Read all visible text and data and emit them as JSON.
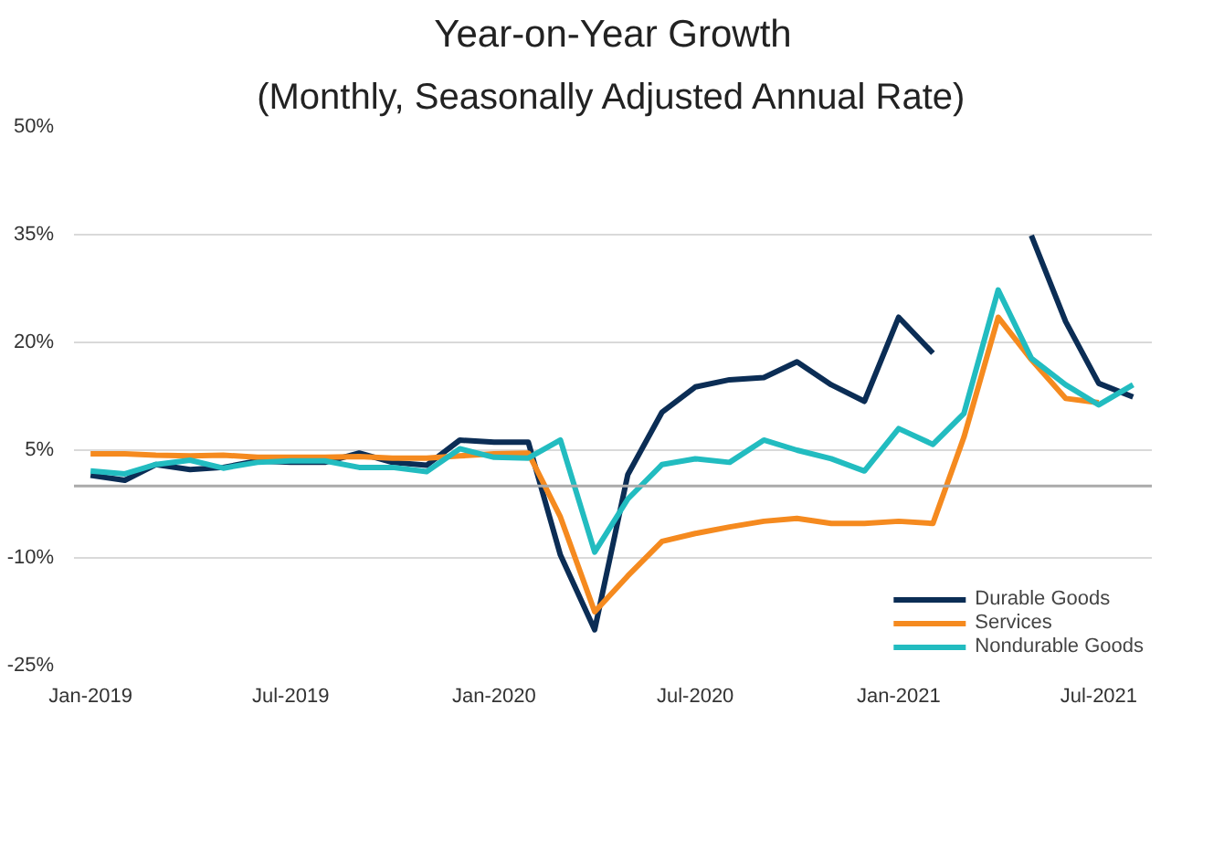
{
  "chart_data": {
    "type": "line",
    "title": "Year-on-Year Growth",
    "subtitle": "(Monthly, Seasonally Adjusted Annual Rate)",
    "x": [
      "2019-01",
      "2019-02",
      "2019-03",
      "2019-04",
      "2019-05",
      "2019-06",
      "2019-07",
      "2019-08",
      "2019-09",
      "2019-10",
      "2019-11",
      "2019-12",
      "2020-01",
      "2020-02",
      "2020-03",
      "2020-04",
      "2020-05",
      "2020-06",
      "2020-07",
      "2020-08",
      "2020-09",
      "2020-10",
      "2020-11",
      "2020-12",
      "2021-01",
      "2021-02",
      "2021-03",
      "2021-04",
      "2021-05",
      "2021-06",
      "2021-07",
      "2021-08"
    ],
    "series": [
      {
        "name": "Durable Goods",
        "color": "#0b2d55",
        "values": [
          1.5,
          0.8,
          3.0,
          2.3,
          2.6,
          3.5,
          3.3,
          3.3,
          4.6,
          3.3,
          2.9,
          6.4,
          6.1,
          6.1,
          -9.6,
          -20,
          1.6,
          10.3,
          13.8,
          14.8,
          15.1,
          17.3,
          14.1,
          11.8,
          23.5,
          18.5,
          null,
          null,
          34.9,
          22.9,
          14.3,
          12.4
        ]
      },
      {
        "name": "Services",
        "color": "#f58a1f",
        "values": [
          4.5,
          4.5,
          4.3,
          4.2,
          4.3,
          4.0,
          4.0,
          4.0,
          4.1,
          3.9,
          3.9,
          4.2,
          4.5,
          4.6,
          -4.3,
          -17.5,
          -12.5,
          -7.7,
          -6.6,
          -5.7,
          -4.9,
          -4.5,
          -5.2,
          -5.2,
          -4.9,
          -5.2,
          6.8,
          23.5,
          17.6,
          12.2,
          11.6,
          null
        ]
      },
      {
        "name": "Nondurable Goods",
        "color": "#22bcc0",
        "values": [
          2.1,
          1.7,
          3.0,
          3.6,
          2.5,
          3.3,
          3.5,
          3.5,
          2.6,
          2.6,
          2.0,
          5.2,
          4.0,
          3.9,
          6.4,
          -9.2,
          -1.8,
          3.0,
          3.8,
          3.3,
          6.4,
          5.0,
          3.8,
          2.1,
          8.0,
          5.8,
          10.1,
          27.3,
          17.8,
          14.1,
          11.3,
          14.1
        ]
      }
    ],
    "xlim": [
      "2018-12-17",
      "2021-08-18"
    ],
    "xticks": [
      {
        "value": "2019-01",
        "label": "Jan-2019"
      },
      {
        "value": "2019-07",
        "label": "Jul-2019"
      },
      {
        "value": "2020-01",
        "label": "Jan-2020"
      },
      {
        "value": "2020-07",
        "label": "Jul-2020"
      },
      {
        "value": "2021-01",
        "label": "Jan-2021"
      },
      {
        "value": "2021-07",
        "label": "Jul-2021"
      }
    ],
    "ylim": [
      -25,
      50
    ],
    "yticks": [
      {
        "value": -25,
        "label": "-25%"
      },
      {
        "value": -10,
        "label": "-10%"
      },
      {
        "value": 5,
        "label": "5%"
      },
      {
        "value": 20,
        "label": "20%"
      },
      {
        "value": 35,
        "label": "35%"
      },
      {
        "value": 50,
        "label": "50%"
      }
    ],
    "ref_lines": [
      {
        "axis": "y",
        "value": 0,
        "color": "#aaaaaa"
      }
    ],
    "grid": "y",
    "legend": "bottom right",
    "line_style": "solid",
    "marker": "none"
  }
}
